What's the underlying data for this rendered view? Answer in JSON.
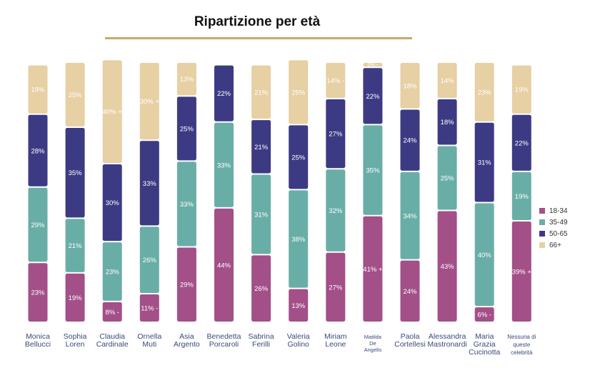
{
  "title": "Ripartizione per età",
  "chart_data": {
    "type": "bar",
    "stacked": true,
    "orientation": "vertical",
    "title": "Ripartizione per età",
    "categories": [
      [
        "Monica",
        "Bellucci"
      ],
      [
        "Sophia",
        "Loren"
      ],
      [
        "Claudia",
        "Cardinale"
      ],
      [
        "Ornella",
        "Muti"
      ],
      [
        "Asia",
        "Argento"
      ],
      [
        "Benedetta",
        "Porcaroli"
      ],
      [
        "Sabrina",
        "Ferilli"
      ],
      [
        "Valeria",
        "Golino"
      ],
      [
        "Miriam",
        "Leone"
      ],
      [
        "Matilda",
        "De",
        "Angelis"
      ],
      [
        "Paola",
        "Cortellesi"
      ],
      [
        "Alessandra",
        "Mastronardi"
      ],
      [
        "Maria",
        "Grazia",
        "Cucinotta"
      ],
      [
        "Nessuna di",
        "queste",
        "celebrità"
      ]
    ],
    "series": [
      {
        "name": "18-34",
        "color": "#a34f88",
        "values": [
          23,
          19,
          8,
          11,
          29,
          44,
          26,
          13,
          27,
          41,
          24,
          43,
          6,
          39
        ]
      },
      {
        "name": "35-49",
        "color": "#69aea6",
        "values": [
          29,
          21,
          23,
          26,
          33,
          33,
          31,
          38,
          32,
          35,
          34,
          25,
          40,
          19
        ]
      },
      {
        "name": "50-65",
        "color": "#3d3a84",
        "values": [
          28,
          35,
          30,
          33,
          25,
          22,
          21,
          25,
          27,
          22,
          24,
          18,
          31,
          22
        ]
      },
      {
        "name": "66+",
        "color": "#e6d0a4",
        "values": [
          19,
          25,
          40,
          30,
          13,
          0,
          21,
          25,
          14,
          2,
          18,
          14,
          23,
          19
        ]
      }
    ],
    "data_labels": [
      [
        "23%",
        "29%",
        "28%",
        "19%"
      ],
      [
        "19%",
        "21%",
        "35%",
        "25%"
      ],
      [
        "8% -",
        "23%",
        "30%",
        "40% +"
      ],
      [
        "11% -",
        "26%",
        "33%",
        "30% +"
      ],
      [
        "29%",
        "33%",
        "25%",
        "13%"
      ],
      [
        "44%",
        "33%",
        "22%",
        ""
      ],
      [
        "26%",
        "31%",
        "21%",
        "21%"
      ],
      [
        "13%",
        "38%",
        "25%",
        "25%"
      ],
      [
        "27%",
        "32%",
        "27%",
        "14% -"
      ],
      [
        "41% +",
        "35%",
        "22%",
        "2% -"
      ],
      [
        "24%",
        "34%",
        "24%",
        "18%"
      ],
      [
        "43%",
        "25%",
        "18%",
        "14%"
      ],
      [
        "6% -",
        "40%",
        "31%",
        "23%"
      ],
      [
        "39% +",
        "19%",
        "22%",
        "19%"
      ]
    ],
    "ylim": [
      0,
      100
    ],
    "legend_position": "right",
    "grid": false
  }
}
